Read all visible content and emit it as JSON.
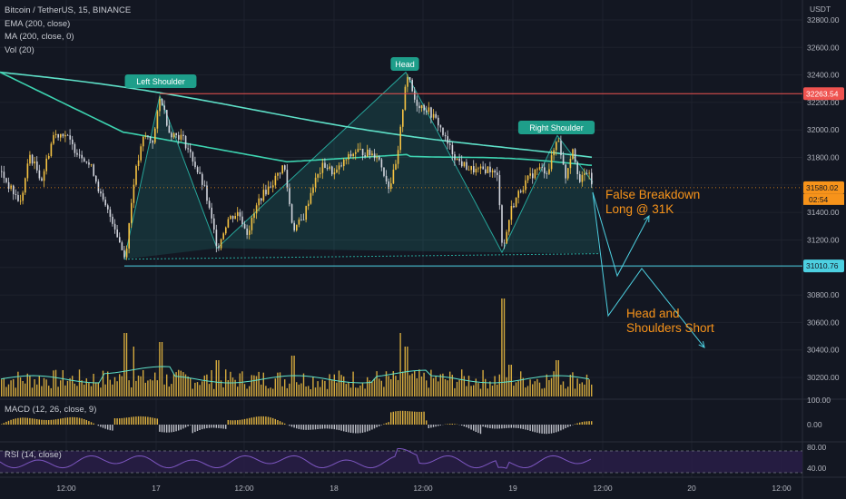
{
  "legend": {
    "symbol": "Bitcoin / TetherUS, 15, BINANCE",
    "ema": "EMA (200, close)",
    "ma": "MA (200, close, 0)",
    "vol": "Vol (20)"
  },
  "macd_label": "MACD (12, 26, close, 9)",
  "rsi_label": "RSI (14, close)",
  "currency": "USDT",
  "colors": {
    "background": "#131722",
    "candle": "#f5c242",
    "candle_down": "#d1d4dc",
    "ma_line": "#5ee0c8",
    "ema_line": "#3dd3b0",
    "pattern_fill": "#26a69a",
    "resistance": "#ef5350",
    "support": "#4dd0e1",
    "annotation_orange": "#f7931a",
    "label_bg": "#1e9e8a",
    "rsi_band": "#2a1e4a"
  },
  "chart_data": {
    "type": "candlestick",
    "x_ticks": [
      "12:00",
      "17",
      "12:00",
      "18",
      "12:00",
      "19",
      "12:00",
      "20",
      "12:00"
    ],
    "y_ticks": [
      "32800.00",
      "32600.00",
      "32400.00",
      "32200.00",
      "32000.00",
      "31800.00",
      "31600.00",
      "31400.00",
      "31200.00",
      "31000.00",
      "30800.00",
      "30600.00",
      "30400.00",
      "30200.00"
    ],
    "ylim": [
      30100,
      32900
    ],
    "price_labels": {
      "resistance": "32263.54",
      "current": "31580.02",
      "countdown": "02:54",
      "support": "31010.76"
    },
    "pattern_labels": {
      "left_shoulder": "Left Shoulder",
      "head": "Head",
      "right_shoulder": "Right Shoulder"
    },
    "annotations": {
      "false_breakdown_1": "False Breakdown",
      "false_breakdown_2": "Long @ 31K",
      "hs_short_1": "Head and",
      "hs_short_2": "Shoulders Short"
    },
    "pattern_points": [
      {
        "name": "left-shoulder-low-1",
        "t": 0.0,
        "price": 31060
      },
      {
        "name": "left-shoulder-peak",
        "t": 0.0,
        "price": 32250
      },
      {
        "name": "left-shoulder-low-2",
        "t": 0.0,
        "price": 31140
      },
      {
        "name": "head-peak",
        "t": 0.0,
        "price": 32420
      },
      {
        "name": "right-low",
        "t": 0.0,
        "price": 31110
      },
      {
        "name": "right-shoulder-peak",
        "t": 0.0,
        "price": 31960
      },
      {
        "name": "pattern-end",
        "t": 0.0,
        "price": 31620
      }
    ],
    "macd_ticks": [
      "100.00",
      "0.00"
    ],
    "rsi_ticks": [
      "80.00",
      "40.00"
    ]
  }
}
